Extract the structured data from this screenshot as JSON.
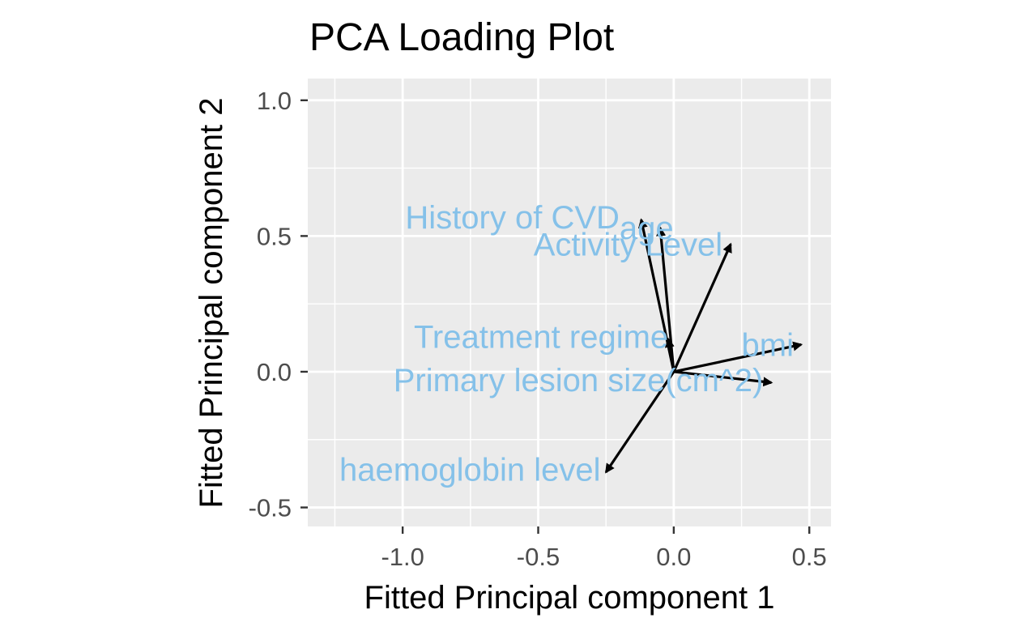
{
  "chart_data": {
    "type": "scatter",
    "subtype": "pca-loading-biplot",
    "title": "PCA Loading Plot",
    "xlabel": "Fitted Principal component 1",
    "ylabel": "Fitted Principal component 2",
    "xlim": [
      -1.35,
      0.58
    ],
    "ylim": [
      -0.57,
      1.08
    ],
    "xticks": [
      -1.0,
      -0.5,
      0.0,
      0.5
    ],
    "xtick_labels": [
      "-1.0",
      "-0.5",
      "0.0",
      "0.5"
    ],
    "yticks": [
      -0.5,
      0.0,
      0.5,
      1.0
    ],
    "ytick_labels": [
      "-0.5",
      "0.0",
      "0.5",
      "1.0"
    ],
    "grid": true,
    "label_color": "#85C1E9",
    "arrow_color": "#000000",
    "panel_background": "#EBEBEB",
    "origin": [
      0,
      0
    ],
    "loadings": [
      {
        "name": "History of CVD",
        "x": -0.12,
        "y": 0.56,
        "label_x": -0.2,
        "label_y": 0.56,
        "label_anchor": "end"
      },
      {
        "name": "age",
        "x": -0.05,
        "y": 0.53,
        "label_x": -0.2,
        "label_y": 0.52,
        "label_anchor": "start"
      },
      {
        "name": "Activity Level",
        "x": 0.21,
        "y": 0.47,
        "label_x": 0.18,
        "label_y": 0.46,
        "label_anchor": "end"
      },
      {
        "name": "Treatment regime",
        "x": -0.02,
        "y": 0.12,
        "label_x": -0.02,
        "label_y": 0.12,
        "label_anchor": "end"
      },
      {
        "name": "bmi",
        "x": 0.47,
        "y": 0.1,
        "label_x": 0.25,
        "label_y": 0.09,
        "label_anchor": "start"
      },
      {
        "name": "Primary lesion size(cm^2)",
        "x": 0.36,
        "y": -0.04,
        "label_x": 0.33,
        "label_y": -0.04,
        "label_anchor": "end"
      },
      {
        "name": "haemoglobin level",
        "x": -0.25,
        "y": -0.37,
        "label_x": -0.27,
        "label_y": -0.37,
        "label_anchor": "end"
      }
    ]
  }
}
